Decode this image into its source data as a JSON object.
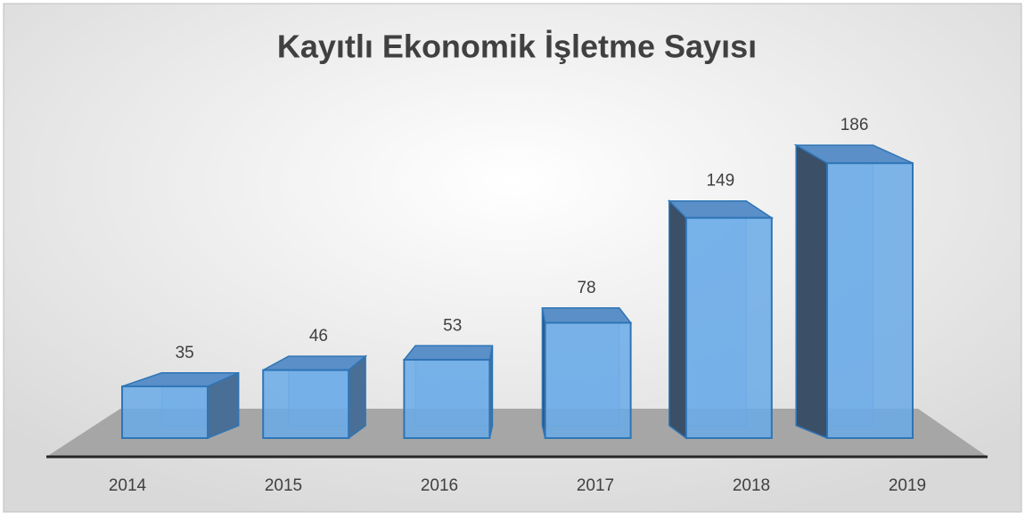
{
  "chart_data": {
    "type": "bar3d",
    "title": "Kayıtlı Ekonomik İşletme Sayısı",
    "categories": [
      "2014",
      "2015",
      "2016",
      "2017",
      "2018",
      "2019"
    ],
    "values": [
      35,
      46,
      53,
      78,
      149,
      186
    ],
    "color": "#6aaae8",
    "ylim": [
      0,
      200
    ]
  }
}
